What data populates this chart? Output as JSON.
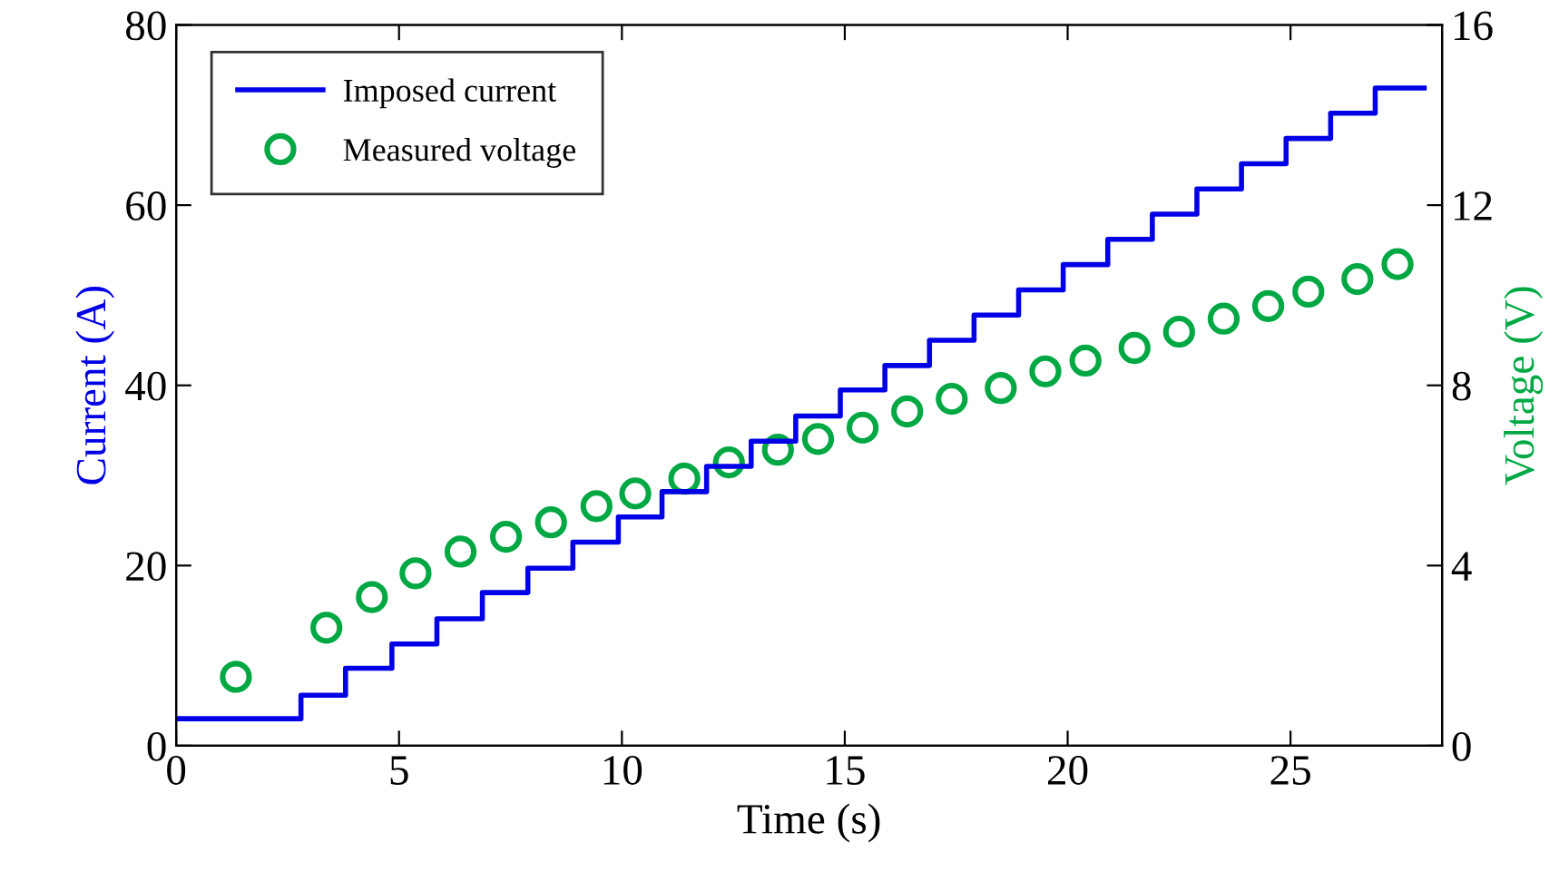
{
  "chart_data": {
    "type": "step",
    "xlabel": "Time (s)",
    "ylabel": "Current (A)",
    "y2label": "Voltage (V)",
    "xlim": [
      0,
      28.4
    ],
    "xticks": [
      0,
      5,
      10,
      15,
      20,
      25
    ],
    "ylim": [
      0,
      80
    ],
    "yticks": [
      0,
      20,
      40,
      60,
      80
    ],
    "y2lim": [
      0,
      16
    ],
    "y2ticks": [
      0,
      4,
      8,
      12,
      16
    ],
    "legend": "top left",
    "grid": false,
    "series": [
      {
        "name": "Imposed current",
        "color": "#0000e6",
        "line_style": "solid",
        "marker": "none",
        "x": [
          0,
          2.8,
          3.8,
          4.84,
          5.85,
          6.87,
          7.89,
          8.9,
          9.92,
          10.9,
          11.9,
          12.9,
          13.9,
          14.9,
          15.9,
          16.9,
          17.9,
          18.9,
          19.9,
          20.9,
          21.9,
          22.9,
          23.9,
          24.9,
          25.9,
          26.9,
          28.0
        ],
        "values": [
          3.0,
          5.6,
          8.6,
          11.3,
          14.1,
          17.0,
          19.7,
          22.6,
          25.4,
          28.2,
          31.0,
          33.8,
          36.6,
          39.5,
          42.2,
          45.0,
          47.8,
          50.6,
          53.4,
          56.2,
          59.0,
          61.8,
          64.6,
          67.4,
          70.2,
          73.0,
          73.0
        ]
      },
      {
        "name": "Measured voltage",
        "type": "scatter",
        "axis": "y2",
        "color": "#00a844",
        "marker": "circle",
        "x": [
          1.34,
          3.37,
          4.39,
          5.37,
          6.38,
          7.4,
          8.41,
          9.43,
          10.3,
          11.4,
          12.4,
          13.5,
          14.4,
          15.4,
          16.4,
          17.4,
          18.5,
          19.5,
          20.4,
          21.5,
          22.5,
          23.5,
          24.5,
          25.4,
          26.5,
          27.4
        ],
        "values": [
          1.53,
          2.62,
          3.3,
          3.83,
          4.31,
          4.64,
          4.96,
          5.32,
          5.6,
          5.93,
          6.29,
          6.57,
          6.81,
          7.06,
          7.42,
          7.7,
          7.94,
          8.31,
          8.55,
          8.83,
          9.19,
          9.48,
          9.76,
          10.08,
          10.36,
          10.69
        ]
      }
    ]
  }
}
